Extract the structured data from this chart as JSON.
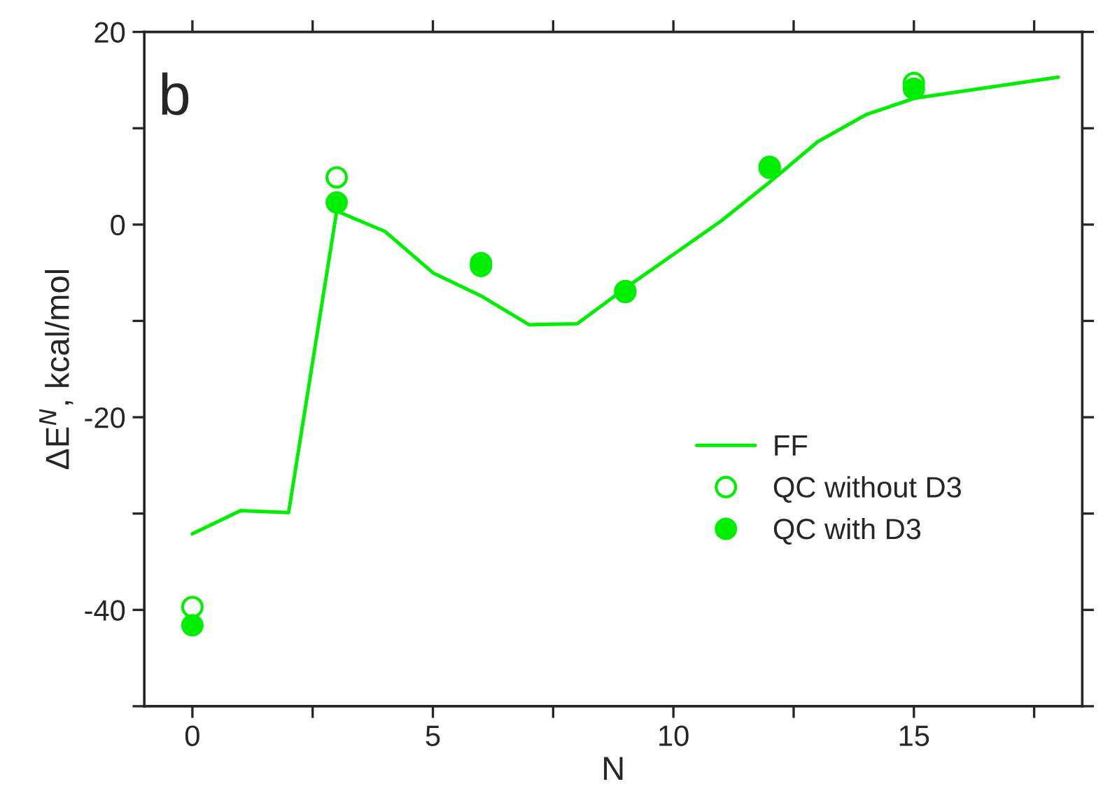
{
  "chart_data": {
    "type": "line",
    "xlabel": "N",
    "ylabel": "ΔE$^{N}$, kcal/mol",
    "annotations": [
      "b"
    ],
    "xlim": [
      -1,
      18.5
    ],
    "ylim": [
      -50,
      20
    ],
    "xticks": [
      0,
      {
        "value": 2.5,
        "label": null
      },
      5,
      {
        "value": 7.5,
        "label": null
      },
      10,
      {
        "value": 12.5,
        "label": null
      },
      15,
      {
        "value": 17.5,
        "label": null
      }
    ],
    "yticks": [
      {
        "value": -50,
        "label": null
      },
      -40,
      {
        "value": -30,
        "label": null
      },
      -20,
      {
        "value": -10,
        "label": null
      },
      0,
      {
        "value": 10,
        "label": null
      },
      20
    ],
    "grid": false,
    "legend": "lower right",
    "series": [
      {
        "name": "FF",
        "color": "#00ee00",
        "marker": "none",
        "line_style": "solid",
        "x": [
          0,
          1,
          2,
          3,
          4,
          5,
          6,
          7,
          8,
          9,
          10,
          11,
          12,
          13,
          14,
          15,
          18
        ],
        "values": [
          -32.1,
          -29.7,
          -29.9,
          1.4,
          -0.7,
          -5,
          -7.4,
          -10.4,
          -10.3,
          -6.6,
          -3.1,
          0.4,
          4.4,
          8.6,
          11.4,
          13.1,
          15.3
        ]
      },
      {
        "name": "QC without D3",
        "type": "scatter",
        "color": "#00ee00",
        "marker": "circle",
        "x": [
          0,
          3,
          6,
          9,
          12,
          15
        ],
        "values": [
          -39.7,
          4.9,
          -4.0,
          -6.9,
          6.0,
          14.7
        ]
      },
      {
        "name": "QC with D3",
        "type": "scatter",
        "color": "#00ee00",
        "marker": "circle",
        "x": [
          0,
          3,
          6,
          9,
          12,
          15
        ],
        "values": [
          -41.6,
          2.3,
          -4.3,
          -7.0,
          5.9,
          14.1
        ]
      }
    ]
  }
}
